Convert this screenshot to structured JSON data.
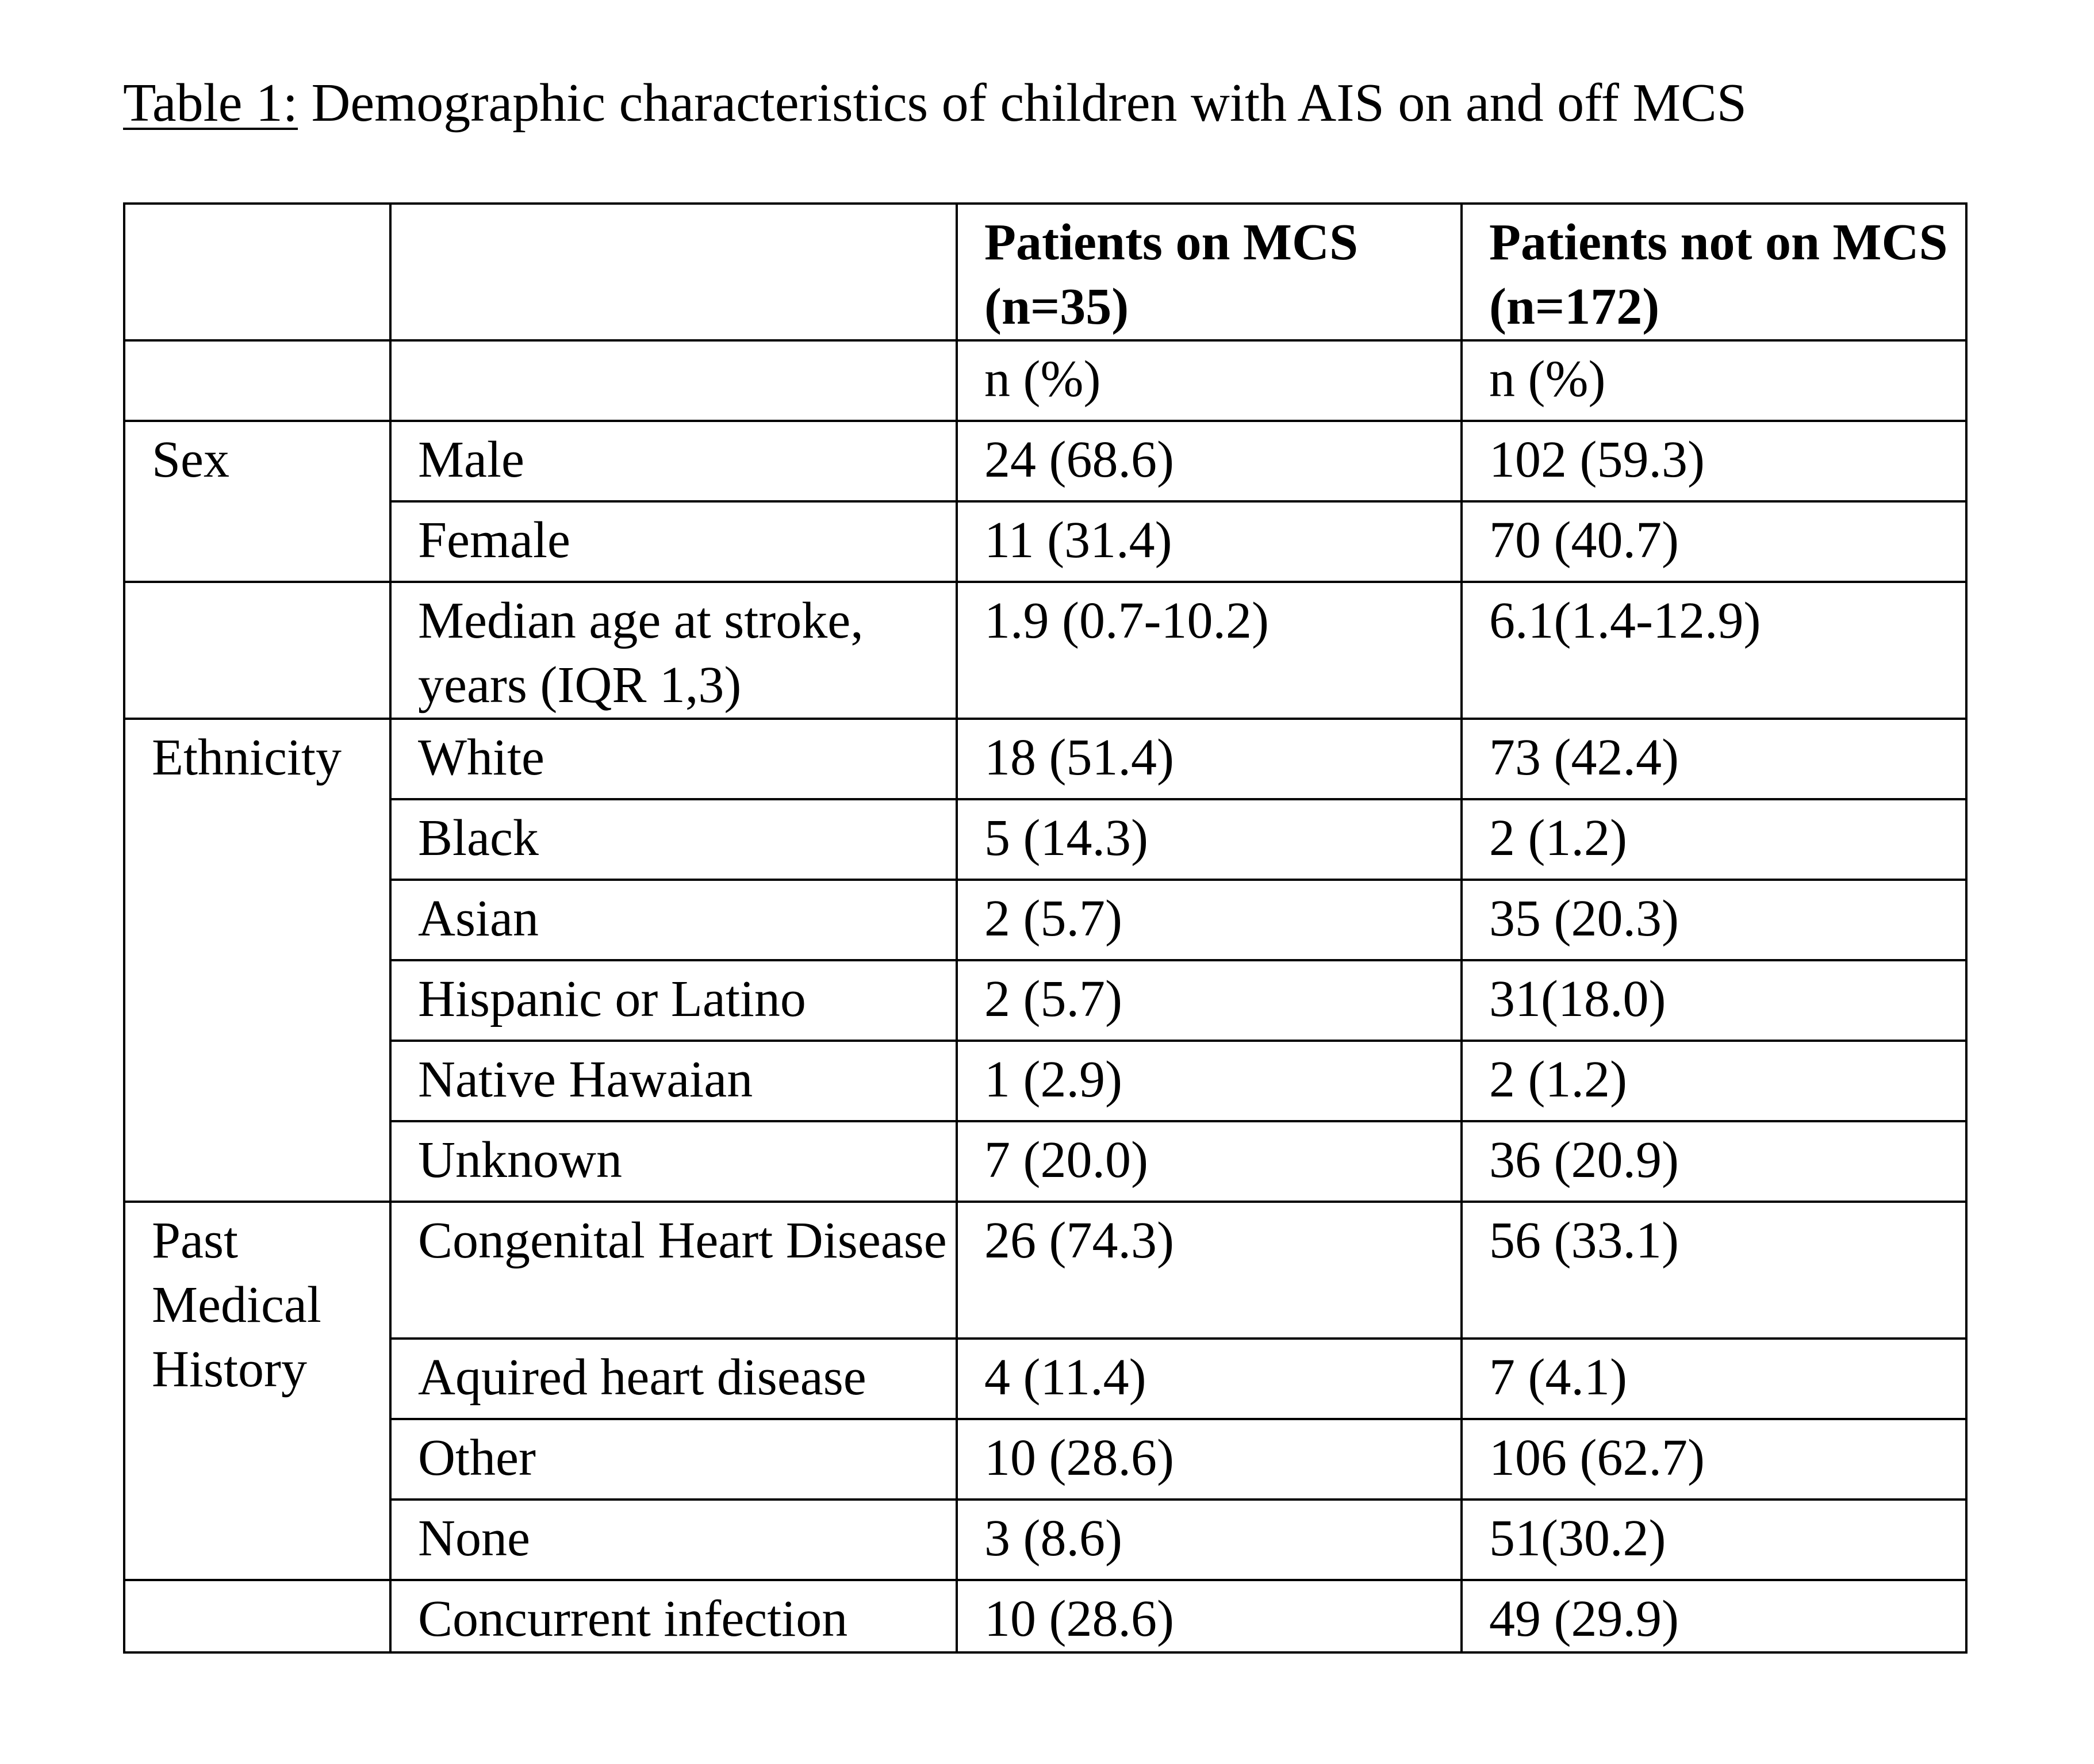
{
  "caption": {
    "label": "Table 1:",
    "text": " Demographic characteristics of children with AIS on and off MCS"
  },
  "table": {
    "header": {
      "col3": "Patients on MCS (n=35)",
      "col4": "Patients not on MCS (n=172)"
    },
    "units": {
      "col3": "n (%)",
      "col4": "n (%)"
    },
    "groups": {
      "sex": "Sex",
      "ethnicity": "Ethnicity",
      "pmh": "Past Medical History"
    },
    "rows": [
      {
        "label": "Male",
        "on": "24 (68.6)",
        "off": "102 (59.3)"
      },
      {
        "label": "Female",
        "on": "11 (31.4)",
        "off": "70 (40.7)"
      },
      {
        "label": "Median age at stroke, years (IQR 1,3)",
        "on": "1.9 (0.7-10.2)",
        "off": "6.1(1.4-12.9)"
      },
      {
        "label": "White",
        "on": "18 (51.4)",
        "off": "73 (42.4)"
      },
      {
        "label": "Black",
        "on": "5 (14.3)",
        "off": "2 (1.2)"
      },
      {
        "label": "Asian",
        "on": "2 (5.7)",
        "off": "35 (20.3)"
      },
      {
        "label": "Hispanic or Latino",
        "on": "2 (5.7)",
        "off": "31(18.0)"
      },
      {
        "label": "Native Hawaian",
        "on": "1 (2.9)",
        "off": "2 (1.2)"
      },
      {
        "label": "Unknown",
        "on": "7 (20.0)",
        "off": "36 (20.9)"
      },
      {
        "label": "Congenital Heart Disease",
        "on": "26 (74.3)",
        "off": "56 (33.1)"
      },
      {
        "label": "Aquired heart disease",
        "on": "4 (11.4)",
        "off": "7 (4.1)"
      },
      {
        "label": "Other",
        "on": "10 (28.6)",
        "off": "106 (62.7)"
      },
      {
        "label": "None",
        "on": "3 (8.6)",
        "off": "51(30.2)"
      },
      {
        "label": "Concurrent infection",
        "on": "10 (28.6)",
        "off": "49 (29.9)"
      }
    ]
  }
}
